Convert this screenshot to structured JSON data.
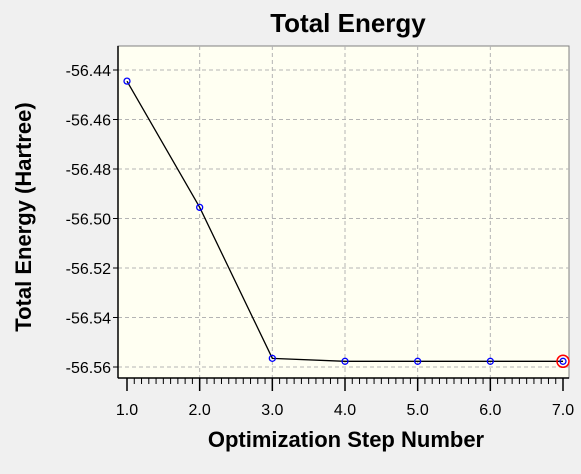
{
  "chart_data": {
    "type": "line",
    "title": "Total Energy",
    "xlabel": "Optimization Step Number",
    "ylabel": "Total Energy (Hartree)",
    "xlim": [
      1.0,
      7.0
    ],
    "ylim": [
      -56.56,
      -56.44
    ],
    "x_ticks": [
      "1.0",
      "2.0",
      "3.0",
      "4.0",
      "5.0",
      "6.0",
      "7.0"
    ],
    "y_ticks": [
      "-56.44",
      "-56.46",
      "-56.48",
      "-56.50",
      "-56.52",
      "-56.54",
      "-56.56"
    ],
    "grid": true,
    "legend": "none",
    "series": [
      {
        "x": [
          1,
          2,
          3,
          4,
          5,
          6,
          7
        ],
        "values": [
          -56.4445,
          -56.4955,
          -56.5565,
          -56.5577,
          -56.5577,
          -56.5577,
          -56.5577
        ]
      }
    ],
    "highlighted_point_index": 6,
    "colors": {
      "plot_background": "#fffff2",
      "page_background": "#f0f0f0",
      "line": "#000000",
      "marker": "#0000ff",
      "highlight": "#ff0000",
      "grid": "#b4b4b4"
    }
  }
}
